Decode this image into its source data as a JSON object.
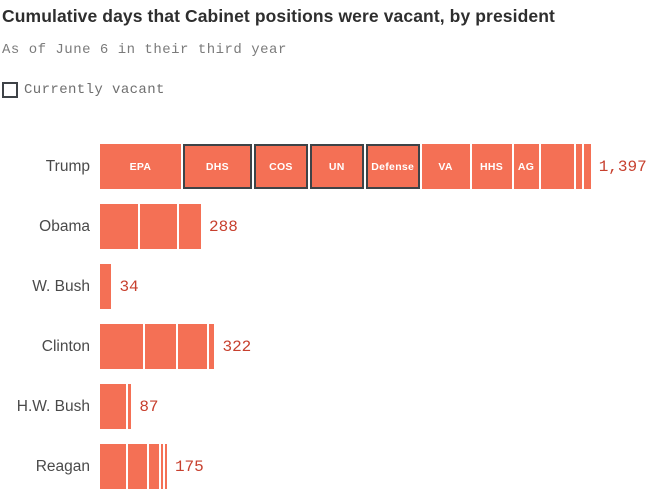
{
  "header": {
    "title": "Cumulative days that Cabinet positions were vacant, by president",
    "subtitle": "As of June 6 in their third year",
    "legend_label": "Currently vacant"
  },
  "colors": {
    "bar_fill": "#f47055",
    "value_text": "#c7402e",
    "vacant_outline": "#3e4347",
    "title_text": "#2e2e2e",
    "subtitle_text": "#7b7b7b",
    "label_text": "#4a4a4a"
  },
  "chart_data": {
    "type": "bar",
    "orientation": "horizontal",
    "stacked": true,
    "unit": "days",
    "title": "Cumulative days that Cabinet positions were vacant, by president",
    "subtitle": "As of June 6 in their third year",
    "legend": [
      "Currently vacant"
    ],
    "legend_meaning": "segments outlined in dark gray are positions currently vacant",
    "categories": [
      "Trump",
      "Obama",
      "W. Bush",
      "Clinton",
      "H.W. Bush",
      "Reagan"
    ],
    "totals": [
      1397,
      288,
      34,
      322,
      87,
      175
    ],
    "total_labels": [
      "1,397",
      "288",
      "34",
      "322",
      "87",
      "175"
    ],
    "bars": [
      {
        "president": "Trump",
        "total": 1397,
        "total_label": "1,397",
        "segments": [
          {
            "label": "EPA",
            "days": 240,
            "currently_vacant": false
          },
          {
            "label": "DHS",
            "days": 205,
            "currently_vacant": true
          },
          {
            "label": "COS",
            "days": 160,
            "currently_vacant": true
          },
          {
            "label": "UN",
            "days": 160,
            "currently_vacant": true
          },
          {
            "label": "Defense",
            "days": 160,
            "currently_vacant": true
          },
          {
            "label": "VA",
            "days": 142,
            "currently_vacant": false
          },
          {
            "label": "HHS",
            "days": 119,
            "currently_vacant": false
          },
          {
            "label": "AG",
            "days": 74,
            "currently_vacant": false
          },
          {
            "label": "",
            "days": 98,
            "currently_vacant": false
          },
          {
            "label": "",
            "days": 18,
            "currently_vacant": false
          },
          {
            "label": "",
            "days": 21,
            "currently_vacant": false
          }
        ]
      },
      {
        "president": "Obama",
        "total": 288,
        "total_label": "288",
        "segments": [
          {
            "label": "",
            "days": 114,
            "currently_vacant": false
          },
          {
            "label": "",
            "days": 108,
            "currently_vacant": false
          },
          {
            "label": "",
            "days": 66,
            "currently_vacant": false
          }
        ]
      },
      {
        "president": "W. Bush",
        "total": 34,
        "total_label": "34",
        "segments": [
          {
            "label": "",
            "days": 34,
            "currently_vacant": false
          }
        ]
      },
      {
        "president": "Clinton",
        "total": 322,
        "total_label": "322",
        "segments": [
          {
            "label": "",
            "days": 128,
            "currently_vacant": false
          },
          {
            "label": "",
            "days": 91,
            "currently_vacant": false
          },
          {
            "label": "",
            "days": 88,
            "currently_vacant": false
          },
          {
            "label": "",
            "days": 15,
            "currently_vacant": false
          }
        ]
      },
      {
        "president": "H.W. Bush",
        "total": 87,
        "total_label": "87",
        "segments": [
          {
            "label": "",
            "days": 78,
            "currently_vacant": false
          },
          {
            "label": "",
            "days": 9,
            "currently_vacant": false
          }
        ]
      },
      {
        "president": "Reagan",
        "total": 175,
        "total_label": "175",
        "segments": [
          {
            "label": "",
            "days": 78,
            "currently_vacant": false
          },
          {
            "label": "",
            "days": 56,
            "currently_vacant": false
          },
          {
            "label": "",
            "days": 30,
            "currently_vacant": false
          },
          {
            "label": "",
            "days": 5,
            "currently_vacant": false
          },
          {
            "label": "",
            "days": 6,
            "currently_vacant": false
          }
        ]
      }
    ]
  }
}
